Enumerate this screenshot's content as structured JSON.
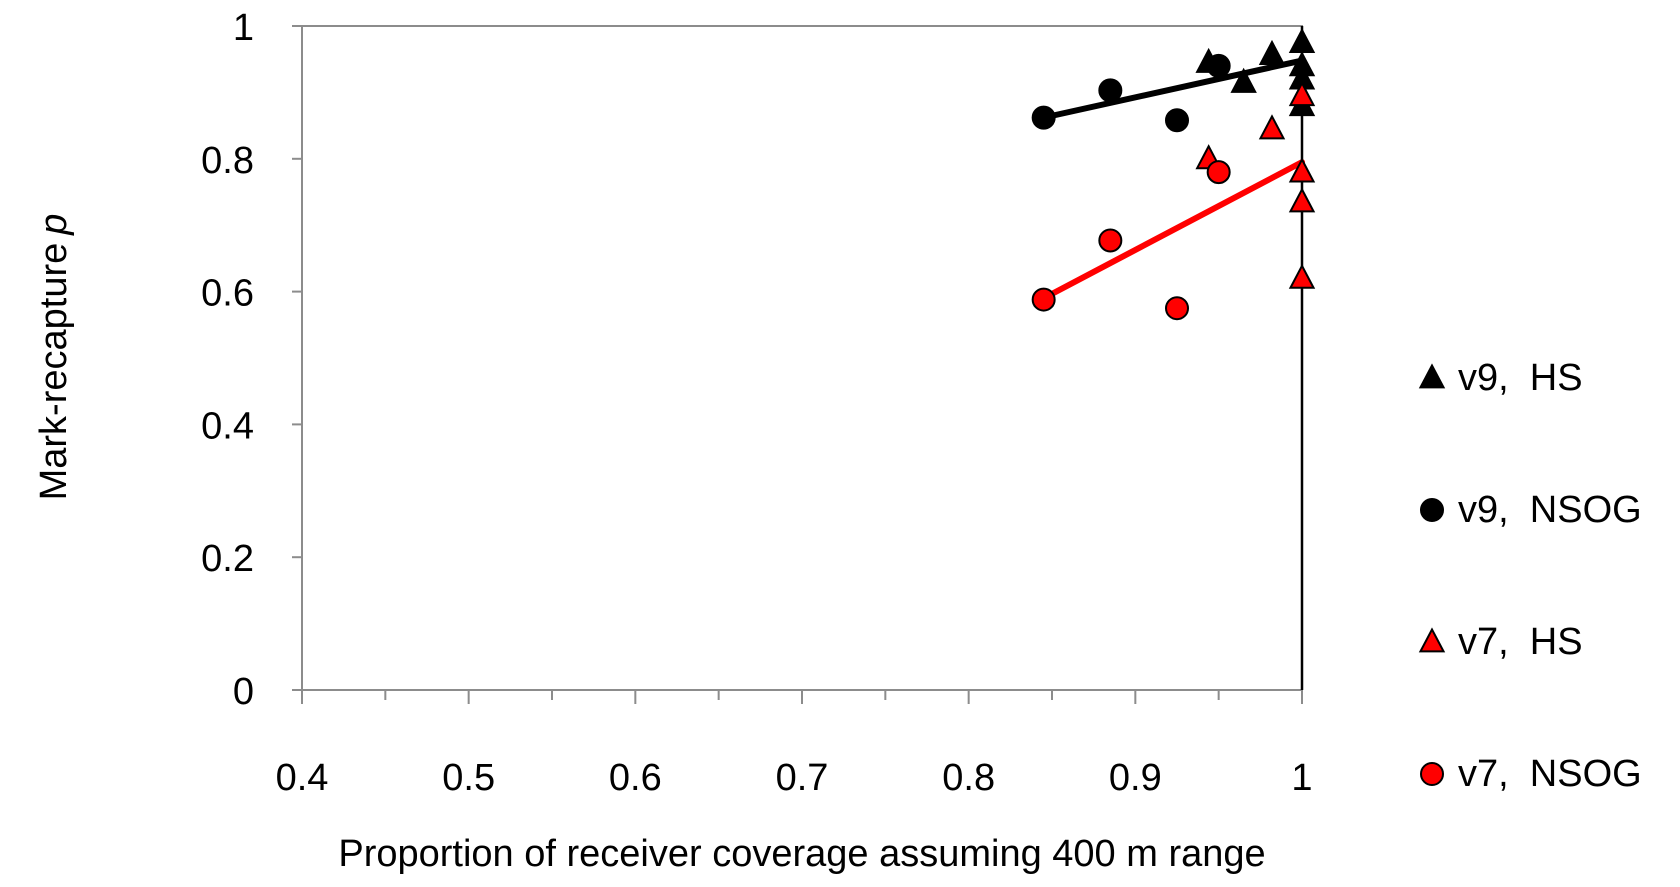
{
  "chart_data": {
    "type": "scatter",
    "title": "",
    "xlabel": "Proportion of receiver coverage assuming 400 m range",
    "ylabel": "Mark-recapture p",
    "ylabel_main": "Mark-recapture",
    "ylabel_italic": "p",
    "xlim": [
      0.4,
      1.0
    ],
    "ylim": [
      0,
      1.0
    ],
    "x_ticks": [
      0.4,
      0.5,
      0.6,
      0.7,
      0.8,
      0.9,
      1.0
    ],
    "x_tick_labels": [
      "0.4",
      "0.5",
      "0.6",
      "0.7",
      "0.8",
      "0.9",
      "1"
    ],
    "y_ticks": [
      0,
      0.2,
      0.4,
      0.6,
      0.8,
      1.0
    ],
    "y_tick_labels": [
      "0",
      "0.2",
      "0.4",
      "0.6",
      "0.8",
      "1"
    ],
    "grid": false,
    "legend_position": "right",
    "series": [
      {
        "name": "v9,  HS",
        "marker": "triangle",
        "color": "#000000",
        "points": [
          [
            0.944,
            0.945
          ],
          [
            0.965,
            0.915
          ],
          [
            0.982,
            0.957
          ],
          [
            1.0,
            0.975
          ],
          [
            1.0,
            0.94
          ],
          [
            1.0,
            0.92
          ],
          [
            1.0,
            0.88
          ]
        ]
      },
      {
        "name": "v9,  NSOG",
        "marker": "circle",
        "color": "#000000",
        "points": [
          [
            0.845,
            0.862
          ],
          [
            0.885,
            0.903
          ],
          [
            0.925,
            0.858
          ],
          [
            0.95,
            0.94
          ]
        ]
      },
      {
        "name": "v7,  HS",
        "marker": "triangle",
        "color": "#ff0000",
        "points": [
          [
            0.944,
            0.8
          ],
          [
            0.982,
            0.845
          ],
          [
            1.0,
            0.895
          ],
          [
            1.0,
            0.78
          ],
          [
            1.0,
            0.735
          ],
          [
            1.0,
            0.62
          ]
        ]
      },
      {
        "name": "v7,  NSOG",
        "marker": "circle",
        "color": "#ff0000",
        "points": [
          [
            0.845,
            0.588
          ],
          [
            0.885,
            0.677
          ],
          [
            0.925,
            0.575
          ],
          [
            0.95,
            0.78
          ]
        ]
      }
    ],
    "trendlines": [
      {
        "color": "#000000",
        "x": [
          0.845,
          1.0
        ],
        "y": [
          0.862,
          0.948
        ]
      },
      {
        "color": "#ff0000",
        "x": [
          0.845,
          1.0
        ],
        "y": [
          0.59,
          0.795
        ]
      }
    ]
  }
}
